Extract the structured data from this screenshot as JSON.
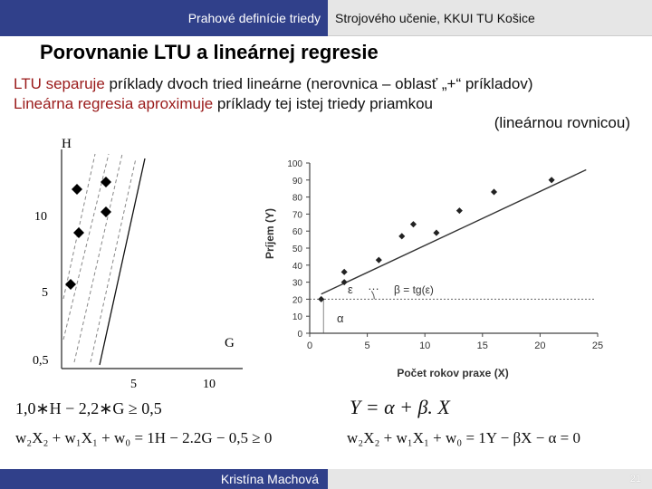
{
  "header": {
    "left": "Prahové definície triedy",
    "right": "Strojového učenie, KKUI TU Košice"
  },
  "slide": {
    "title": "Porovnanie LTU a lineárnej regresie",
    "line1_red": "LTU separuje",
    "line1_rest": " príklady dvoch tried lineárne (nerovnica – oblasť „+“ príkladov)",
    "line2_red": "Lineárna regresia aproximuje",
    "line2_rest": " príklady tej istej triedy priamkou",
    "line3": "(lineárnou rovnicou)"
  },
  "left_plot": {
    "y_axis_label": "H",
    "x_axis_label": "G",
    "y_ticks": [
      "10",
      "5",
      "0,5"
    ],
    "x_ticks": [
      "5",
      "10"
    ],
    "inequality": "1,0∗H − 2,2∗G ≥ 0,5",
    "equation": "w₂X₂ + w₁X₁ + w₀ = 1H − 2.2G − 0,5 ≥ 0"
  },
  "chart_data": {
    "type": "scatter",
    "title": "",
    "xlabel": "Počet rokov praxe (X)",
    "ylabel": "Príjem (Y)",
    "xlim": [
      0,
      25
    ],
    "ylim": [
      0,
      100
    ],
    "x_ticks": [
      "0",
      "5",
      "10",
      "15",
      "20",
      "25"
    ],
    "y_ticks": [
      "0",
      "10",
      "20",
      "30",
      "40",
      "50",
      "60",
      "70",
      "80",
      "90",
      "100"
    ],
    "points": [
      {
        "x": 1,
        "y": 20
      },
      {
        "x": 3,
        "y": 30
      },
      {
        "x": 3,
        "y": 36
      },
      {
        "x": 6,
        "y": 43
      },
      {
        "x": 8,
        "y": 57
      },
      {
        "x": 9,
        "y": 64
      },
      {
        "x": 11,
        "y": 59
      },
      {
        "x": 13,
        "y": 72
      },
      {
        "x": 16,
        "y": 83
      },
      {
        "x": 21,
        "y": 90
      }
    ],
    "regression_line": {
      "x": [
        1,
        24
      ],
      "y": [
        23,
        96
      ]
    },
    "alpha_level": 20,
    "annotations": {
      "epsilon": "ε",
      "dots": "…",
      "beta": "β = tg(ε)",
      "alpha": "α"
    },
    "equation": "Y = α + β. X",
    "equation2": "w₂X₂ + w₁X₁ + w₀ = 1Y − βX − α = 0"
  },
  "footer": {
    "author": "Kristína Machová",
    "page": "21"
  }
}
